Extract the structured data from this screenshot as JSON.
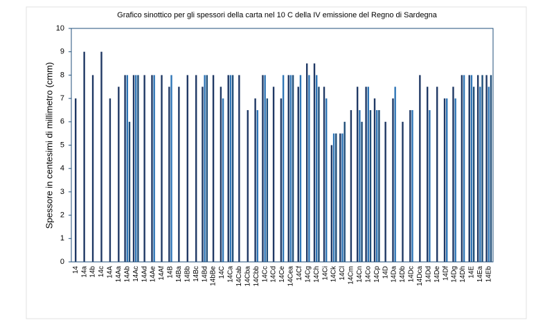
{
  "chart_data": {
    "type": "bar",
    "title": "Grafico sinottico per gli spessori della carta nel 10 C della IV emissione del Regno di Sardegna",
    "y_label": "Spessore in centesimi di millimetro (cmm)",
    "categories": [
      "14",
      "14a",
      "14b",
      "14c",
      "14A",
      "14Aa",
      "14Ab",
      "14Ac",
      "14Ad",
      "14Ae",
      "14Af",
      "14B",
      "14Ba",
      "14Bb",
      "14Bc",
      "14Bd",
      "14bBe",
      "14C",
      "14Ca",
      "14Cab",
      "14Cba",
      "14Cbb",
      "14Cc",
      "14Cd",
      "14Ce",
      "14Cea",
      "14Cf",
      "14Cg",
      "14Ch",
      "14Ci",
      "14Ck",
      "14Cl",
      "14Cm",
      "14Cn",
      "14Co",
      "14Cp",
      "14D",
      "14Da",
      "14Db",
      "14Dc",
      "14Dca",
      "14Dd",
      "14De",
      "14Df",
      "14Dg",
      "14Dh",
      "14E",
      "14Ea",
      "14Eb"
    ],
    "series": [
      {
        "color": "#1f3864",
        "values": [
          7,
          9,
          8,
          9,
          7,
          7.5,
          8,
          8,
          8,
          8,
          8,
          7.5,
          7.5,
          8,
          8,
          7.5,
          8,
          7.5,
          8,
          8,
          6.5,
          7,
          8,
          7.5,
          7,
          8,
          7.5,
          8.5,
          8.5,
          7.5,
          5,
          5.5,
          6.5,
          7.5,
          7.5,
          7,
          6,
          7,
          6,
          6.5,
          8,
          7.5,
          7.5,
          7,
          7.5,
          8,
          8,
          8,
          8
        ]
      },
      {
        "color": "#2e75b6",
        "values": [
          null,
          null,
          null,
          null,
          null,
          null,
          8,
          8,
          null,
          8,
          null,
          8,
          null,
          null,
          null,
          8,
          null,
          7,
          8,
          null,
          null,
          6.5,
          8,
          null,
          8,
          8,
          8,
          8,
          8,
          7,
          5.5,
          5.5,
          null,
          6.5,
          7.5,
          6.5,
          null,
          7.5,
          null,
          6.5,
          null,
          6.5,
          null,
          7,
          7,
          8,
          8,
          7.5,
          7.5
        ]
      },
      {
        "color": "#1f4e79",
        "values": [
          null,
          null,
          null,
          null,
          null,
          null,
          6,
          8,
          null,
          null,
          null,
          null,
          null,
          null,
          null,
          8,
          null,
          null,
          8,
          null,
          null,
          null,
          7,
          null,
          null,
          8,
          null,
          null,
          7.5,
          null,
          5.5,
          6,
          null,
          6,
          6.5,
          6.5,
          null,
          null,
          null,
          null,
          null,
          null,
          null,
          null,
          null,
          null,
          7.5,
          8,
          8
        ]
      }
    ],
    "ylim": [
      0,
      10
    ],
    "yticks": [
      0,
      1,
      2,
      3,
      4,
      5,
      6,
      7,
      8,
      9,
      10
    ],
    "grid": false
  }
}
